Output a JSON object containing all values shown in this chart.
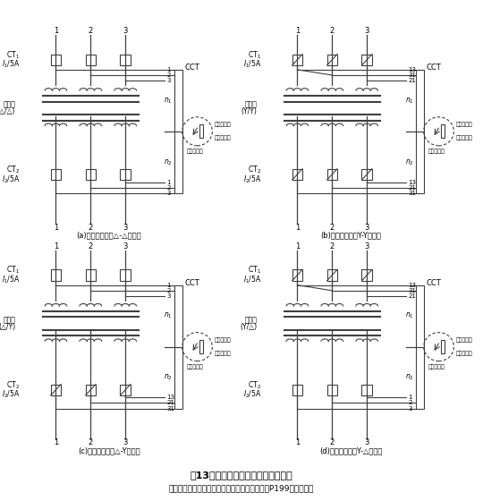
{
  "title1": "第13図　各種変圧器結線時の接続例",
  "title2": "（電気書院　保護継電システム（中山敬造書）P199から引用）",
  "panels": [
    {
      "label": "(a)　変圧器結線△-△の場合",
      "tr_label1": "変圧器",
      "tr_label2": "(△/△)",
      "ct1_star": false,
      "ct2_star": false,
      "top_labels": [
        "1",
        "2",
        "3"
      ],
      "bot_labels": [
        "3",
        "2",
        "1"
      ]
    },
    {
      "label": "(b)　変圧器結線Y-Yの場合",
      "tr_label1": "変圧器",
      "tr_label2": "(Y/Y)",
      "ct1_star": true,
      "ct2_star": true,
      "top_labels": [
        "13",
        "31",
        "21"
      ],
      "bot_labels": [
        "31",
        "21",
        "13"
      ]
    },
    {
      "label": "(c)　変圧器結線△-Yの場合",
      "tr_label1": "変圧器",
      "tr_label2": "(△/Y)",
      "ct1_star": false,
      "ct2_star": true,
      "top_labels": [
        "1",
        "2",
        "3"
      ],
      "bot_labels": [
        "31",
        "21",
        "13"
      ]
    },
    {
      "label": "(d)　変圧器結線Y-△の場合",
      "tr_label1": "変圧器",
      "tr_label2": "(Y/△)",
      "ct1_star": true,
      "ct2_star": false,
      "top_labels": [
        "13",
        "31",
        "21"
      ],
      "bot_labels": [
        "3",
        "2",
        "1"
      ]
    }
  ]
}
